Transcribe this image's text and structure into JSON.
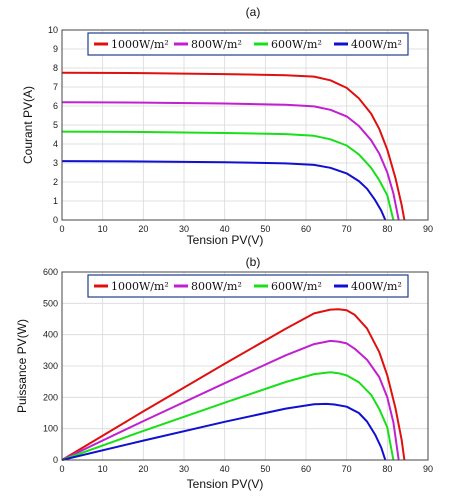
{
  "chart_data": [
    {
      "type": "line",
      "title": "(a)",
      "xlabel": "Tension PV(V)",
      "ylabel": "Courant PV(A)",
      "xlim": [
        0,
        90
      ],
      "ylim": [
        0,
        10
      ],
      "xticks": [
        "0",
        "10",
        "20",
        "30",
        "40",
        "50",
        "60",
        "70",
        "80",
        "90"
      ],
      "yticks": [
        "0",
        "1",
        "2",
        "3",
        "4",
        "5",
        "6",
        "7",
        "8",
        "9",
        "10"
      ],
      "grid": true,
      "legend": {
        "placement": "top",
        "orientation": "horizontal"
      },
      "series": [
        {
          "name": "1000W/m²",
          "color": "#e01010",
          "points": [
            [
              0,
              7.75
            ],
            [
              20,
              7.73
            ],
            [
              40,
              7.68
            ],
            [
              55,
              7.62
            ],
            [
              62,
              7.55
            ],
            [
              66,
              7.35
            ],
            [
              70,
              6.95
            ],
            [
              73,
              6.4
            ],
            [
              76,
              5.6
            ],
            [
              78,
              4.8
            ],
            [
              80,
              3.7
            ],
            [
              82,
              2.2
            ],
            [
              83.5,
              0.8
            ],
            [
              84.2,
              0
            ]
          ]
        },
        {
          "name": "800W/m²",
          "color": "#c020d0",
          "points": [
            [
              0,
              6.2
            ],
            [
              20,
              6.18
            ],
            [
              40,
              6.13
            ],
            [
              55,
              6.07
            ],
            [
              62,
              5.98
            ],
            [
              66,
              5.8
            ],
            [
              70,
              5.45
            ],
            [
              73,
              4.95
            ],
            [
              76,
              4.2
            ],
            [
              78,
              3.5
            ],
            [
              80,
              2.5
            ],
            [
              81.5,
              1.4
            ],
            [
              82.8,
              0
            ]
          ]
        },
        {
          "name": "600W/m²",
          "color": "#18e018",
          "points": [
            [
              0,
              4.65
            ],
            [
              20,
              4.63
            ],
            [
              40,
              4.58
            ],
            [
              55,
              4.52
            ],
            [
              62,
              4.43
            ],
            [
              66,
              4.25
            ],
            [
              70,
              3.92
            ],
            [
              73,
              3.45
            ],
            [
              76,
              2.75
            ],
            [
              78,
              2.1
            ],
            [
              80,
              1.3
            ],
            [
              81.5,
              0
            ]
          ]
        },
        {
          "name": "400W/m²",
          "color": "#1010d0",
          "points": [
            [
              0,
              3.1
            ],
            [
              20,
              3.08
            ],
            [
              40,
              3.04
            ],
            [
              55,
              2.98
            ],
            [
              62,
              2.9
            ],
            [
              66,
              2.75
            ],
            [
              70,
              2.45
            ],
            [
              73,
              2.05
            ],
            [
              75,
              1.65
            ],
            [
              77,
              1.05
            ],
            [
              78.5,
              0.5
            ],
            [
              79.5,
              0
            ]
          ]
        }
      ]
    },
    {
      "type": "line",
      "title": "(b)",
      "xlabel": "Tension PV(V)",
      "ylabel": "Puissance PV(W)",
      "xlim": [
        0,
        90
      ],
      "ylim": [
        0,
        600
      ],
      "xticks": [
        "0",
        "10",
        "20",
        "30",
        "40",
        "50",
        "60",
        "70",
        "80",
        "90"
      ],
      "yticks": [
        "0",
        "100",
        "200",
        "300",
        "400",
        "500",
        "600"
      ],
      "grid": true,
      "legend": {
        "placement": "top",
        "orientation": "horizontal"
      },
      "series": [
        {
          "name": "1000W/m²",
          "color": "#e01010",
          "points": [
            [
              0,
              0
            ],
            [
              20,
              155
            ],
            [
              40,
              307
            ],
            [
              55,
              419
            ],
            [
              62,
              468
            ],
            [
              66,
              480
            ],
            [
              68,
              481
            ],
            [
              70,
              478
            ],
            [
              72,
              463
            ],
            [
              75,
              420
            ],
            [
              78,
              345
            ],
            [
              80,
              270
            ],
            [
              82,
              165
            ],
            [
              83.5,
              65
            ],
            [
              84.2,
              0
            ]
          ]
        },
        {
          "name": "800W/m²",
          "color": "#c020d0",
          "points": [
            [
              0,
              0
            ],
            [
              20,
              124
            ],
            [
              40,
              245
            ],
            [
              55,
              334
            ],
            [
              62,
              370
            ],
            [
              66,
              380
            ],
            [
              68,
              378
            ],
            [
              70,
              372
            ],
            [
              72,
              355
            ],
            [
              75,
              320
            ],
            [
              78,
              265
            ],
            [
              80,
              200
            ],
            [
              81.5,
              120
            ],
            [
              82.8,
              0
            ]
          ]
        },
        {
          "name": "600W/m²",
          "color": "#18e018",
          "points": [
            [
              0,
              0
            ],
            [
              20,
              93
            ],
            [
              40,
              183
            ],
            [
              55,
              249
            ],
            [
              62,
              274
            ],
            [
              66,
              280
            ],
            [
              68,
              277
            ],
            [
              70,
              270
            ],
            [
              73,
              248
            ],
            [
              76,
              208
            ],
            [
              78,
              163
            ],
            [
              80,
              104
            ],
            [
              81.5,
              0
            ]
          ]
        },
        {
          "name": "400W/m²",
          "color": "#1010d0",
          "points": [
            [
              0,
              0
            ],
            [
              20,
              62
            ],
            [
              40,
              122
            ],
            [
              55,
              164
            ],
            [
              62,
              178
            ],
            [
              65,
              179
            ],
            [
              67,
              177
            ],
            [
              70,
              170
            ],
            [
              73,
              150
            ],
            [
              75,
              123
            ],
            [
              77,
              81
            ],
            [
              78.5,
              40
            ],
            [
              79.5,
              0
            ]
          ]
        }
      ]
    }
  ]
}
